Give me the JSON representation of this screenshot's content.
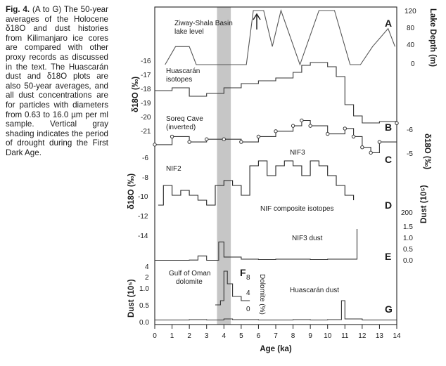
{
  "caption": {
    "fig_label": "Fig. 4.",
    "text": "(A to G) The 50-year averages of the Holocene δ18O and dust histories from Kilimanjaro ice cores are compared with other proxy records as discussed in the text. The Huascarán dust and δ18O plots are also 50-year averages, and all dust concentrations are for particles with diameters from 0.63 to 16.0 µm per ml sample. Vertical gray shading indicates the period of drought during the First Dark Age."
  },
  "figure": {
    "x_axis_title": "Age (ka)",
    "x_ticks": [
      "0",
      "1",
      "2",
      "3",
      "4",
      "5",
      "6",
      "7",
      "8",
      "9",
      "10",
      "11",
      "12",
      "13",
      "14"
    ],
    "drought_shading_ka": [
      3.6,
      4.4
    ],
    "panels": [
      "A",
      "B",
      "C",
      "D",
      "E",
      "F",
      "G"
    ],
    "labels": {
      "ziway_line1": "Ziway-Shala Basin",
      "ziway_line2": "lake level",
      "huascaran_iso_1": "Huascarán",
      "huascaran_iso_2": "isotopes",
      "soreq_1": "Soreq Cave",
      "soreq_2": "(inverted)",
      "nif2": "NIF2",
      "nif3": "NIF3",
      "nif_composite": "NIF composite isotopes",
      "nif3_dust": "NIF3 dust",
      "oman_1": "Gulf of Oman",
      "oman_2": "dolomite",
      "huascaran_dust": "Huascarán dust"
    },
    "axes": {
      "lake_depth": {
        "title": "Lake Depth (m)",
        "ticks": [
          "120",
          "80",
          "40",
          "0"
        ]
      },
      "huascaran_d18o": {
        "title": "δ18O (‰)",
        "ticks": [
          "-16",
          "-17",
          "-18",
          "-19",
          "-20",
          "-21"
        ]
      },
      "soreq_d18o": {
        "title": "δ18O (‰)",
        "ticks": [
          "-6",
          "-5"
        ]
      },
      "nif_d18o": {
        "title": "δ18O (‰)",
        "ticks": [
          "-6",
          "-8",
          "-10",
          "-12",
          "-14"
        ]
      },
      "nif_dust": {
        "title": "Dust (10⁵)",
        "ticks": [
          "200",
          "1.5",
          "1.0",
          "0.5",
          "0.0"
        ]
      },
      "dolomite": {
        "title": "Dolomite (%)",
        "ticks": [
          "8",
          "4",
          "0"
        ]
      },
      "huascaran_dust": {
        "title": "Dust (10⁵)",
        "ticks": [
          "4",
          "2",
          "1.0",
          "0.5",
          "0.0"
        ]
      }
    }
  },
  "chart_data": [
    {
      "type": "line",
      "panel": "A",
      "series": [
        {
          "name": "Ziway-Shala Basin lake level",
          "x": [
            0.6,
            1.2,
            2.0,
            2.4,
            5.3,
            5.7,
            6.3,
            6.8,
            7.3,
            8.4,
            9.5,
            10.4,
            11.3,
            11.9,
            12.6,
            13.5,
            13.9
          ],
          "y": [
            0,
            40,
            40,
            0,
            0,
            120,
            120,
            40,
            120,
            0,
            120,
            120,
            0,
            0,
            40,
            80,
            40
          ]
        }
      ],
      "ylabel": "Lake Depth (m)"
    },
    {
      "type": "line",
      "panel": "Huascarán",
      "series": [
        {
          "name": "Huascarán isotopes",
          "x": [
            0,
            1,
            2,
            3,
            4,
            5,
            6,
            7,
            8,
            8.5,
            9,
            10,
            10.5,
            11,
            11.5,
            12,
            13,
            14
          ],
          "y": [
            -18.2,
            -18.0,
            -18.6,
            -18.4,
            -18.0,
            -17.7,
            -17.5,
            -17.3,
            -16.9,
            -16.4,
            -16.2,
            -16.5,
            -17.2,
            -19.2,
            -20.0,
            -20.5,
            -20.4,
            -20.2
          ]
        }
      ],
      "ylabel": "δ18O (‰)"
    },
    {
      "type": "line",
      "panel": "B",
      "series": [
        {
          "name": "Soreq Cave (inverted)",
          "x": [
            0,
            1,
            2,
            3,
            4,
            5,
            6,
            7,
            8,
            8.5,
            9,
            10,
            11,
            11.5,
            12,
            12.5,
            13,
            14
          ],
          "y": [
            -5.3,
            -5.6,
            -5.4,
            -5.5,
            -5.5,
            -5.4,
            -5.6,
            -5.8,
            -6.0,
            -6.2,
            -6.0,
            -5.7,
            -5.9,
            -5.6,
            -5.2,
            -5.0,
            -5.4,
            -6.1
          ]
        }
      ],
      "ylabel": "δ18O (‰)"
    },
    {
      "type": "line",
      "panel": "C/D",
      "series": [
        {
          "name": "NIF composite isotopes",
          "x": [
            0.2,
            0.5,
            1,
            1.5,
            2,
            2.5,
            3,
            3.5,
            4,
            4.5,
            5,
            5.5,
            6,
            6.5,
            7,
            7.5,
            8,
            8.5,
            9,
            9.5,
            10,
            10.5,
            11,
            11.5
          ],
          "y": [
            -11,
            -9,
            -10,
            -9.5,
            -10,
            -10.5,
            -11,
            -9,
            -8.5,
            -9,
            -10,
            -7,
            -6.5,
            -8,
            -7,
            -6.5,
            -7,
            -8,
            -6.5,
            -7,
            -8,
            -9,
            -10,
            -10.5
          ]
        }
      ],
      "ylabel": "δ18O (‰)"
    },
    {
      "type": "line",
      "panel": "E",
      "series": [
        {
          "name": "NIF3 dust",
          "x": [
            0,
            1,
            2,
            2.5,
            3,
            3.7,
            4,
            5,
            6,
            7,
            8,
            9,
            10,
            11,
            11.7
          ],
          "y": [
            0.05,
            0.05,
            0.06,
            0.25,
            0.05,
            0.9,
            0.2,
            0.1,
            0.08,
            0.1,
            0.1,
            0.08,
            0.1,
            0.1,
            1.5
          ]
        }
      ],
      "ylabel": "Dust (10⁵)"
    },
    {
      "type": "line",
      "panel": "F",
      "series": [
        {
          "name": "Gulf of Oman dolomite",
          "x": [
            3.5,
            3.8,
            4.0,
            4.2,
            4.5,
            5.0,
            5.5
          ],
          "y": [
            1,
            2,
            9,
            6,
            3,
            2,
            2
          ]
        }
      ],
      "ylabel": "Dolomite (%)"
    },
    {
      "type": "line",
      "panel": "G",
      "series": [
        {
          "name": "Huascarán dust",
          "x": [
            0,
            1,
            2,
            3,
            4,
            4.5,
            5,
            6,
            7,
            8,
            9,
            10,
            10.8,
            11,
            12,
            13,
            14
          ],
          "y": [
            0.05,
            0.05,
            0.06,
            0.05,
            0.08,
            0.06,
            0.06,
            0.05,
            0.05,
            0.06,
            0.05,
            0.06,
            0.6,
            0.08,
            0.05,
            0.05,
            0.05
          ]
        }
      ],
      "ylabel": "Dust (10⁵)"
    }
  ]
}
